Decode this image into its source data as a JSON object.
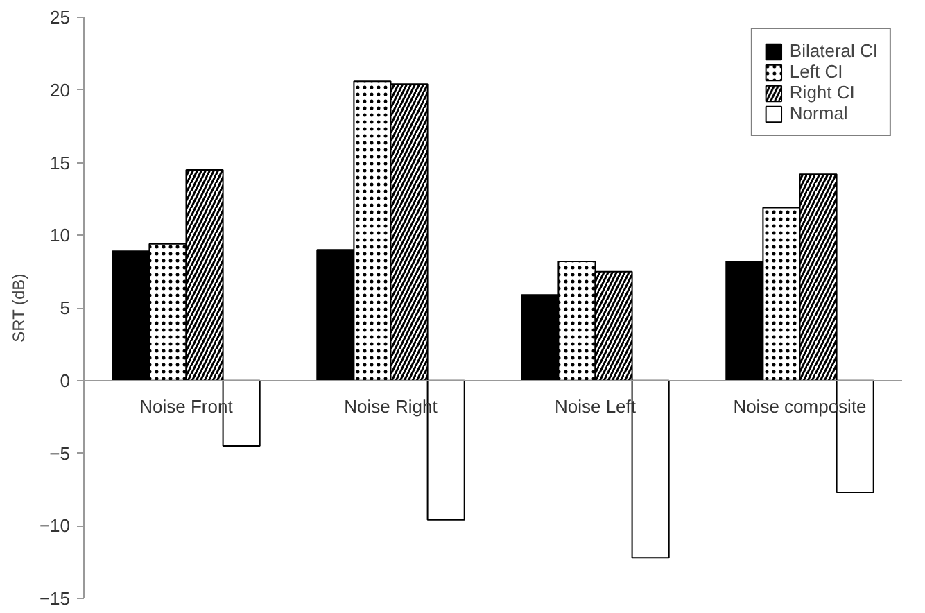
{
  "chart_data": {
    "type": "bar",
    "ylabel": "SRT (dB)",
    "categories": [
      "Noise Front",
      "Noise Right",
      "Noise Left",
      "Noise composite"
    ],
    "series": [
      {
        "name": "Bilateral CI",
        "color": "#000000",
        "values": [
          8.9,
          9.0,
          5.9,
          8.2
        ]
      },
      {
        "name": "Left CI",
        "color": "#ffffff",
        "values": [
          9.4,
          20.6,
          8.2,
          11.9
        ]
      },
      {
        "name": "Right CI",
        "color": "#ffffff",
        "values": [
          14.5,
          20.4,
          7.5,
          14.2
        ]
      },
      {
        "name": "Normal",
        "color": "#ffffff",
        "values": [
          -4.5,
          -9.6,
          -12.2,
          -7.7
        ]
      }
    ],
    "ylim": [
      -15,
      25
    ],
    "yticks": [
      -15,
      -10,
      -5,
      0,
      5,
      10,
      15,
      20,
      25
    ],
    "grid": false,
    "legend": "top right"
  }
}
